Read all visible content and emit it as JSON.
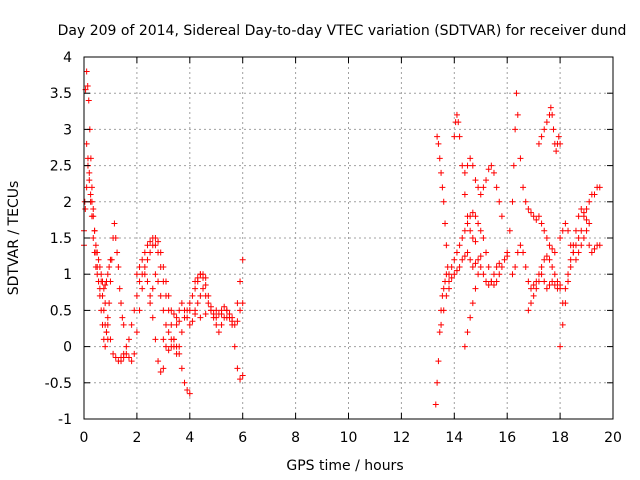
{
  "chart_data": {
    "type": "scatter",
    "title": "Day 209 of 2014, Sidereal Day-to-day VTEC variation (SDTVAR) for receiver dund",
    "xlabel": "GPS time / hours",
    "ylabel": "SDTVAR / TECUs",
    "xlim": [
      0,
      20
    ],
    "ylim": [
      -1,
      4
    ],
    "xticks": [
      0,
      2,
      4,
      6,
      8,
      10,
      12,
      14,
      16,
      18,
      20
    ],
    "xtick_labels": [
      "0",
      "2",
      "4",
      "6",
      "8",
      "10",
      "12",
      "14",
      "16",
      "18",
      "20"
    ],
    "yticks": [
      -1,
      -0.5,
      0,
      0.5,
      1,
      1.5,
      2,
      2.5,
      3,
      3.5,
      4
    ],
    "ytick_labels": [
      "-1",
      "-0.5",
      "0",
      "0.5",
      "1",
      "1.5",
      "2",
      "2.5",
      "3",
      "3.5",
      "4"
    ],
    "grid": true,
    "marker": "+",
    "color": "#ff0000",
    "series": [
      {
        "name": "s1",
        "x": [
          0.0,
          0.03,
          0.06,
          0.1,
          0.14,
          0.18,
          0.22,
          0.26,
          0.3,
          0.35,
          0.4,
          0.45,
          0.5,
          0.55,
          0.6,
          0.65,
          0.7,
          0.75,
          0.8,
          0.85,
          0.9,
          0.95,
          1.0,
          1.05,
          1.1,
          1.15,
          1.2,
          1.25,
          1.3,
          1.35,
          1.4,
          1.45,
          1.5
        ],
        "y": [
          1.4,
          2.0,
          3.55,
          3.8,
          3.6,
          3.4,
          3.0,
          2.6,
          2.2,
          1.9,
          1.6,
          1.3,
          1.1,
          0.9,
          0.7,
          0.5,
          0.3,
          0.1,
          0.0,
          0.2,
          0.4,
          0.6,
          0.9,
          1.2,
          1.5,
          1.7,
          1.5,
          1.3,
          1.1,
          0.8,
          0.6,
          0.4,
          0.3
        ]
      },
      {
        "name": "s2",
        "x": [
          0.0,
          0.05,
          0.1,
          0.15,
          0.2,
          0.25,
          0.3,
          0.35,
          0.4,
          0.45,
          0.5,
          0.55,
          0.6,
          0.65,
          0.7,
          0.75,
          0.8,
          0.85,
          0.9,
          0.95,
          1.0
        ],
        "y": [
          1.6,
          1.9,
          2.2,
          2.5,
          2.3,
          2.1,
          2.0,
          1.8,
          1.6,
          1.4,
          1.3,
          1.2,
          1.1,
          1.0,
          0.9,
          0.8,
          0.85,
          0.9,
          1.0,
          1.1,
          1.2
        ]
      },
      {
        "name": "s3",
        "x": [
          0.1,
          0.15,
          0.2,
          0.25,
          0.3,
          0.35,
          0.4,
          0.45,
          0.5,
          0.55,
          0.6,
          0.65,
          0.7,
          0.75,
          0.8,
          0.85,
          0.9
        ],
        "y": [
          2.8,
          2.6,
          2.4,
          2.0,
          1.8,
          1.5,
          1.3,
          1.1,
          1.0,
          0.9,
          0.8,
          0.9,
          0.7,
          0.5,
          0.3,
          0.2,
          0.1
        ]
      },
      {
        "name": "s4",
        "x": [
          0.8,
          0.9,
          1.0,
          1.1,
          1.2,
          1.3,
          1.4,
          1.5,
          1.6,
          1.7,
          1.8,
          1.9,
          2.0,
          2.1,
          2.2,
          2.3,
          2.4,
          2.5,
          2.6,
          2.7,
          2.8,
          2.9,
          3.0,
          3.1,
          3.2,
          3.3,
          3.4,
          3.5,
          3.6
        ],
        "y": [
          0.6,
          0.3,
          0.1,
          -0.1,
          -0.15,
          -0.2,
          -0.15,
          -0.1,
          0.0,
          0.1,
          0.3,
          0.5,
          0.7,
          0.9,
          1.0,
          1.1,
          1.2,
          1.3,
          1.4,
          1.5,
          1.45,
          1.3,
          1.1,
          0.9,
          0.7,
          0.5,
          0.45,
          0.4,
          0.35
        ]
      },
      {
        "name": "s5",
        "x": [
          1.4,
          1.5,
          1.6,
          1.7,
          1.8,
          1.9,
          2.0,
          2.1,
          2.2,
          2.3,
          2.4,
          2.5,
          2.6,
          2.7,
          2.8,
          2.9,
          3.0
        ],
        "y": [
          -0.2,
          -0.15,
          -0.1,
          -0.15,
          -0.2,
          -0.1,
          0.2,
          0.5,
          0.8,
          1.0,
          0.9,
          0.7,
          0.4,
          0.1,
          -0.2,
          -0.35,
          -0.3
        ]
      },
      {
        "name": "s6",
        "x": [
          2.0,
          2.1,
          2.2,
          2.3,
          2.4,
          2.5,
          2.6,
          2.7,
          2.8,
          2.9,
          3.0,
          3.1,
          3.2,
          3.3,
          3.4,
          3.5,
          3.6,
          3.7,
          3.8,
          3.9,
          4.0
        ],
        "y": [
          1.0,
          1.1,
          1.2,
          1.3,
          1.4,
          1.45,
          1.5,
          1.4,
          1.3,
          1.1,
          0.9,
          0.7,
          0.5,
          0.3,
          0.1,
          0.0,
          -0.1,
          -0.3,
          -0.5,
          -0.6,
          -0.65
        ]
      },
      {
        "name": "s7",
        "x": [
          2.5,
          2.6,
          2.7,
          2.8,
          2.9,
          3.0,
          3.1,
          3.2,
          3.3,
          3.4,
          3.5,
          3.6,
          3.7,
          3.8,
          3.9,
          4.0,
          4.1,
          4.2,
          4.3,
          4.4,
          4.5,
          4.6
        ],
        "y": [
          0.6,
          0.8,
          1.0,
          0.9,
          0.7,
          0.5,
          0.3,
          0.2,
          0.1,
          0.0,
          -0.1,
          0.0,
          0.2,
          0.4,
          0.5,
          0.6,
          0.7,
          0.8,
          0.9,
          1.0,
          1.0,
          0.95
        ]
      },
      {
        "name": "s8",
        "x": [
          3.0,
          3.1,
          3.2,
          3.3,
          3.4,
          3.5,
          3.6,
          3.7,
          3.8,
          3.9,
          4.0,
          4.1,
          4.2,
          4.3,
          4.4,
          4.5,
          4.6,
          4.7,
          4.8,
          4.9,
          5.0,
          5.1,
          5.2,
          5.3,
          5.4,
          5.5,
          5.6,
          5.7,
          5.8,
          5.9,
          6.0
        ],
        "y": [
          0.1,
          0.0,
          -0.05,
          0.0,
          0.1,
          0.3,
          0.5,
          0.6,
          0.5,
          0.4,
          0.3,
          0.35,
          0.5,
          0.6,
          0.7,
          0.8,
          0.7,
          0.6,
          0.5,
          0.4,
          0.3,
          0.2,
          0.3,
          0.4,
          0.5,
          0.45,
          0.4,
          0.3,
          0.35,
          0.5,
          0.6
        ]
      },
      {
        "name": "s9",
        "x": [
          4.2,
          4.3,
          4.4,
          4.5,
          4.6,
          4.7,
          4.8,
          4.9,
          5.0,
          5.1,
          5.2,
          5.3,
          5.4,
          5.5,
          5.6,
          5.7,
          5.8,
          5.9,
          6.0
        ],
        "y": [
          0.9,
          0.95,
          1.0,
          0.95,
          0.85,
          0.7,
          0.55,
          0.45,
          0.4,
          0.45,
          0.5,
          0.55,
          0.5,
          0.4,
          0.3,
          0.0,
          -0.3,
          -0.45,
          -0.4
        ]
      },
      {
        "name": "s10",
        "x": [
          4.0,
          4.2,
          4.4,
          4.6,
          4.8,
          5.0,
          5.2,
          5.4,
          5.6,
          5.8,
          5.9,
          6.0
        ],
        "y": [
          0.5,
          0.45,
          0.4,
          0.45,
          0.5,
          0.5,
          0.45,
          0.4,
          0.35,
          0.6,
          0.9,
          1.2
        ]
      },
      {
        "name": "s11",
        "x": [
          13.3,
          13.35,
          13.4,
          13.45,
          13.5,
          13.55,
          13.6,
          13.65,
          13.7,
          13.8,
          13.9,
          14.0,
          14.1,
          14.2,
          14.3,
          14.4,
          14.5,
          14.6,
          14.7,
          14.8,
          14.9,
          15.0
        ],
        "y": [
          -0.8,
          -0.5,
          -0.2,
          0.2,
          0.5,
          0.7,
          0.8,
          0.9,
          1.0,
          1.0,
          0.95,
          1.0,
          1.05,
          1.1,
          1.2,
          1.25,
          1.3,
          1.2,
          1.1,
          1.15,
          1.2,
          1.25
        ]
      },
      {
        "name": "s12",
        "x": [
          13.35,
          13.4,
          13.45,
          13.5,
          13.55,
          13.6,
          13.65,
          13.7,
          13.75,
          13.8
        ],
        "y": [
          2.9,
          2.8,
          2.6,
          2.4,
          2.2,
          2.0,
          1.7,
          1.4,
          1.1,
          0.8
        ]
      },
      {
        "name": "s13",
        "x": [
          13.5,
          13.6,
          13.7,
          13.8,
          13.9,
          14.0,
          14.1,
          14.2,
          14.3,
          14.4,
          14.5,
          14.6,
          14.7,
          14.8,
          14.9,
          15.0,
          15.1,
          15.2,
          15.3,
          15.4,
          15.5,
          15.6,
          15.7,
          15.8,
          15.9,
          16.0
        ],
        "y": [
          0.3,
          0.5,
          0.7,
          0.9,
          1.1,
          1.2,
          1.3,
          1.4,
          1.5,
          1.6,
          1.7,
          1.8,
          1.85,
          1.8,
          1.7,
          1.6,
          1.5,
          1.3,
          1.1,
          0.9,
          0.85,
          0.9,
          1.0,
          1.1,
          1.2,
          1.25
        ]
      },
      {
        "name": "s14",
        "x": [
          14.0,
          14.05,
          14.1,
          14.15,
          14.2,
          14.3,
          14.4,
          14.5,
          14.6,
          14.7,
          14.8
        ],
        "y": [
          2.9,
          3.1,
          3.2,
          3.1,
          2.9,
          2.5,
          2.1,
          1.8,
          1.6,
          1.5,
          1.45
        ]
      },
      {
        "name": "s15",
        "x": [
          14.4,
          14.5,
          14.6,
          14.7,
          14.8,
          14.9,
          15.0,
          15.1,
          15.2,
          15.3,
          15.4,
          15.5,
          15.6,
          15.7,
          15.8
        ],
        "y": [
          2.4,
          2.5,
          2.6,
          2.5,
          2.3,
          2.2,
          2.1,
          2.2,
          2.3,
          2.45,
          2.5,
          2.4,
          2.2,
          2.0,
          1.8
        ]
      },
      {
        "name": "s16",
        "x": [
          14.4,
          14.5,
          14.6,
          14.7,
          14.8,
          14.9,
          15.0,
          15.1,
          15.2,
          15.3,
          15.4,
          15.5,
          15.6,
          15.7
        ],
        "y": [
          0.0,
          0.2,
          0.4,
          0.6,
          0.8,
          1.0,
          1.1,
          1.0,
          0.9,
          0.85,
          0.9,
          1.0,
          1.1,
          1.15
        ]
      },
      {
        "name": "s17",
        "x": [
          16.0,
          16.1,
          16.2,
          16.25,
          16.3,
          16.35,
          16.4,
          16.5,
          16.6,
          16.7,
          16.8,
          16.9,
          17.0,
          17.1,
          17.2,
          17.3,
          17.4,
          17.5,
          17.6,
          17.7,
          17.8
        ],
        "y": [
          1.3,
          1.6,
          2.0,
          2.5,
          3.0,
          3.5,
          3.2,
          2.6,
          2.2,
          2.0,
          1.9,
          1.85,
          1.8,
          1.75,
          1.8,
          1.7,
          1.6,
          1.5,
          1.4,
          1.35,
          1.3
        ]
      },
      {
        "name": "s18",
        "x": [
          16.2,
          16.3,
          16.4,
          16.5,
          16.6,
          16.7,
          16.8,
          16.9,
          17.0,
          17.1,
          17.2,
          17.3,
          17.4,
          17.5,
          17.6,
          17.7,
          17.8,
          17.9,
          18.0
        ],
        "y": [
          1.0,
          1.1,
          1.3,
          1.4,
          1.3,
          1.1,
          0.9,
          0.8,
          0.85,
          0.9,
          1.0,
          1.1,
          1.2,
          1.25,
          1.2,
          1.1,
          1.0,
          0.9,
          0.85
        ]
      },
      {
        "name": "s19",
        "x": [
          16.8,
          16.9,
          17.0,
          17.1,
          17.2,
          17.3,
          17.4,
          17.5,
          17.6,
          17.7,
          17.8,
          17.9,
          18.0
        ],
        "y": [
          0.5,
          0.6,
          0.7,
          0.8,
          0.9,
          1.0,
          0.9,
          0.8,
          0.85,
          0.9,
          0.85,
          0.8,
          0.8
        ]
      },
      {
        "name": "s20",
        "x": [
          17.2,
          17.3,
          17.4,
          17.5,
          17.6,
          17.65,
          17.7,
          17.75,
          17.8,
          17.85,
          17.9,
          17.95,
          18.0
        ],
        "y": [
          2.8,
          2.9,
          3.0,
          3.1,
          3.2,
          3.3,
          3.2,
          3.0,
          2.8,
          2.7,
          2.8,
          2.9,
          2.8
        ]
      },
      {
        "name": "s21",
        "x": [
          18.0,
          18.1,
          18.2,
          18.3,
          18.4,
          18.5,
          18.6,
          18.7,
          18.8,
          18.9,
          19.0,
          19.1,
          19.2,
          19.3,
          19.4,
          19.5
        ],
        "y": [
          0.0,
          0.3,
          0.6,
          0.9,
          1.1,
          1.3,
          1.4,
          1.5,
          1.6,
          1.8,
          1.9,
          2.0,
          2.1,
          2.1,
          2.2,
          2.2
        ]
      },
      {
        "name": "s22",
        "x": [
          18.0,
          18.1,
          18.2,
          18.3,
          18.4,
          18.5,
          18.6,
          18.7,
          18.8,
          18.9,
          19.0,
          19.1,
          19.2,
          19.3,
          19.4,
          19.5
        ],
        "y": [
          1.5,
          1.6,
          1.7,
          1.6,
          1.4,
          1.3,
          1.2,
          1.3,
          1.4,
          1.5,
          1.6,
          1.4,
          1.3,
          1.35,
          1.4,
          1.4
        ]
      },
      {
        "name": "s23",
        "x": [
          18.1,
          18.2,
          18.3,
          18.4,
          18.5,
          18.6,
          18.7,
          18.8,
          18.9,
          19.0,
          19.1
        ],
        "y": [
          0.6,
          0.8,
          1.0,
          1.2,
          1.4,
          1.6,
          1.8,
          1.9,
          1.85,
          1.75,
          1.7
        ]
      }
    ]
  }
}
